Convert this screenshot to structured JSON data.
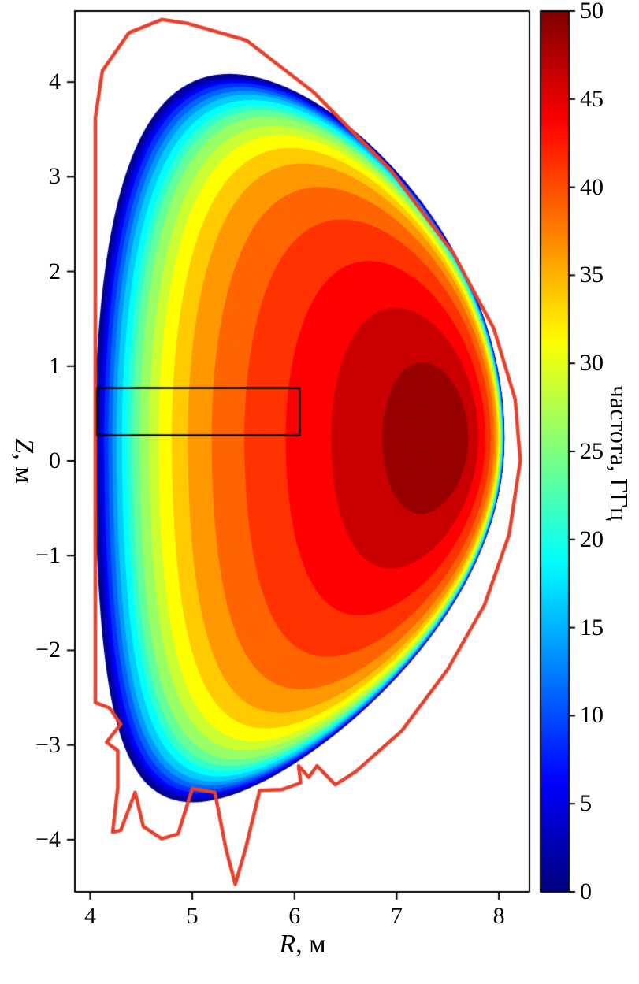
{
  "chart_data": {
    "type": "filled_contour",
    "title": "",
    "x_axis": {
      "symbol": "R",
      "unit": ", м",
      "min": 3.85,
      "max": 8.3,
      "ticks": [
        {
          "v": 4,
          "label": "4"
        },
        {
          "v": 5,
          "label": "5"
        },
        {
          "v": 6,
          "label": "6"
        },
        {
          "v": 7,
          "label": "7"
        },
        {
          "v": 8,
          "label": "8"
        }
      ]
    },
    "y_axis": {
      "symbol": "Z",
      "unit": ", м",
      "min": -4.55,
      "max": 4.75,
      "ticks": [
        {
          "v": -4,
          "label": "−4"
        },
        {
          "v": -3,
          "label": "−3"
        },
        {
          "v": -2,
          "label": "−2"
        },
        {
          "v": -1,
          "label": "−1"
        },
        {
          "v": 0,
          "label": "0"
        },
        {
          "v": 1,
          "label": "1"
        },
        {
          "v": 2,
          "label": "2"
        },
        {
          "v": 3,
          "label": "3"
        },
        {
          "v": 4,
          "label": "4"
        }
      ]
    },
    "colorbar": {
      "label": "частота, ГГц",
      "min": 0,
      "max": 50,
      "colormap": "jet",
      "ticks": [
        {
          "v": 0,
          "label": "0"
        },
        {
          "v": 5,
          "label": "5"
        },
        {
          "v": 10,
          "label": "10"
        },
        {
          "v": 15,
          "label": "15"
        },
        {
          "v": 20,
          "label": "20"
        },
        {
          "v": 25,
          "label": "25"
        },
        {
          "v": 30,
          "label": "30"
        },
        {
          "v": 35,
          "label": "35"
        },
        {
          "v": 40,
          "label": "40"
        },
        {
          "v": 45,
          "label": "45"
        },
        {
          "v": 50,
          "label": "50"
        }
      ]
    },
    "field": {
      "name": "частота",
      "units": "ГГц",
      "edge_value": 0,
      "peak_value": 50,
      "peak_R": 7.5,
      "peak_Z": 0.25
    },
    "levels_step": 2.5,
    "plasma": {
      "R0": 6.05,
      "a": 2.0,
      "Z0": 0.24,
      "kappa": 1.92,
      "shift": 1.45,
      "shift_exp": 1.2,
      "delta_top": 0.35,
      "delta_bot": 0.55,
      "profile": {
        "fmax": 50,
        "w1": 0.62,
        "p1": 10,
        "w2": 0.38,
        "p2": 1.3
      }
    },
    "highlight_rect": {
      "R": [
        4.07,
        6.05
      ],
      "Z": [
        0.27,
        0.77
      ]
    },
    "wall_outline": [
      [
        4.05,
        3.62
      ],
      [
        4.12,
        4.12
      ],
      [
        4.38,
        4.52
      ],
      [
        4.7,
        4.66
      ],
      [
        4.95,
        4.62
      ],
      [
        5.53,
        4.44
      ],
      [
        6.18,
        3.9
      ],
      [
        6.95,
        3.06
      ],
      [
        7.55,
        2.2
      ],
      [
        7.95,
        1.4
      ],
      [
        8.16,
        0.65
      ],
      [
        8.21,
        0.0
      ],
      [
        8.1,
        -0.78
      ],
      [
        7.86,
        -1.52
      ],
      [
        7.5,
        -2.2
      ],
      [
        7.05,
        -2.85
      ],
      [
        6.6,
        -3.28
      ],
      [
        6.4,
        -3.42
      ],
      [
        6.22,
        -3.22
      ],
      [
        6.14,
        -3.34
      ],
      [
        6.04,
        -3.22
      ],
      [
        6.06,
        -3.4
      ],
      [
        5.88,
        -3.47
      ],
      [
        5.66,
        -3.48
      ],
      [
        5.52,
        -4.1
      ],
      [
        5.42,
        -4.47
      ],
      [
        5.33,
        -4.1
      ],
      [
        5.22,
        -3.5
      ],
      [
        5.0,
        -3.46
      ],
      [
        4.86,
        -3.94
      ],
      [
        4.7,
        -3.99
      ],
      [
        4.52,
        -3.86
      ],
      [
        4.44,
        -3.5
      ],
      [
        4.3,
        -3.9
      ],
      [
        4.22,
        -3.92
      ],
      [
        4.27,
        -3.45
      ],
      [
        4.27,
        -3.06
      ],
      [
        4.16,
        -2.97
      ],
      [
        4.3,
        -2.78
      ],
      [
        4.19,
        -2.61
      ],
      [
        4.05,
        -2.55
      ]
    ],
    "colors": {
      "wall": "#e8402a",
      "frame": "#000000",
      "rect": "#000000",
      "background": "#ffffff"
    }
  }
}
